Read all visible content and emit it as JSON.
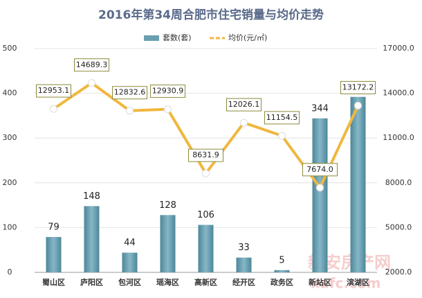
{
  "chart_data": {
    "type": "bar-line",
    "title": "2016年第34周合肥市住宅销量与均价走势",
    "categories": [
      "蜀山区",
      "庐阳区",
      "包河区",
      "瑶海区",
      "高新区",
      "经开区",
      "政务区",
      "新站区",
      "滨湖区"
    ],
    "series": [
      {
        "name": "套数(套)",
        "type": "bar",
        "color": "#6a9fb0",
        "values": [
          79,
          148,
          44,
          128,
          106,
          33,
          5,
          344,
          392
        ]
      },
      {
        "name": "均价(元/㎡)",
        "type": "line",
        "axis": "y2",
        "color": "#f0b73e",
        "values": [
          12953.1,
          14689.3,
          12832.6,
          12930.9,
          8631.9,
          12026.1,
          11154.5,
          7674.0,
          13172.2
        ],
        "value_labels": [
          "12953.1",
          "14689.3",
          "12832.6",
          "12930.9",
          "8631.9",
          "12026.1",
          "11154.5",
          "7674.0",
          "13172.2"
        ]
      }
    ],
    "ylim": [
      0,
      500
    ],
    "yticks": [
      0,
      100,
      200,
      300,
      400,
      500
    ],
    "y2lim": [
      2000,
      17000
    ],
    "y2ticks": [
      {
        "value": 2000,
        "label": "2000.0"
      },
      {
        "value": 5000,
        "label": "5000.0"
      },
      {
        "value": 8000,
        "label": "8000.0"
      },
      {
        "value": 11000,
        "label": "11000.0"
      },
      {
        "value": 14000,
        "label": "14000.0"
      },
      {
        "value": 17000,
        "label": "17000.0"
      }
    ],
    "grid": true,
    "watermark": "新安房产网",
    "watermark_url": "xafc.com"
  }
}
